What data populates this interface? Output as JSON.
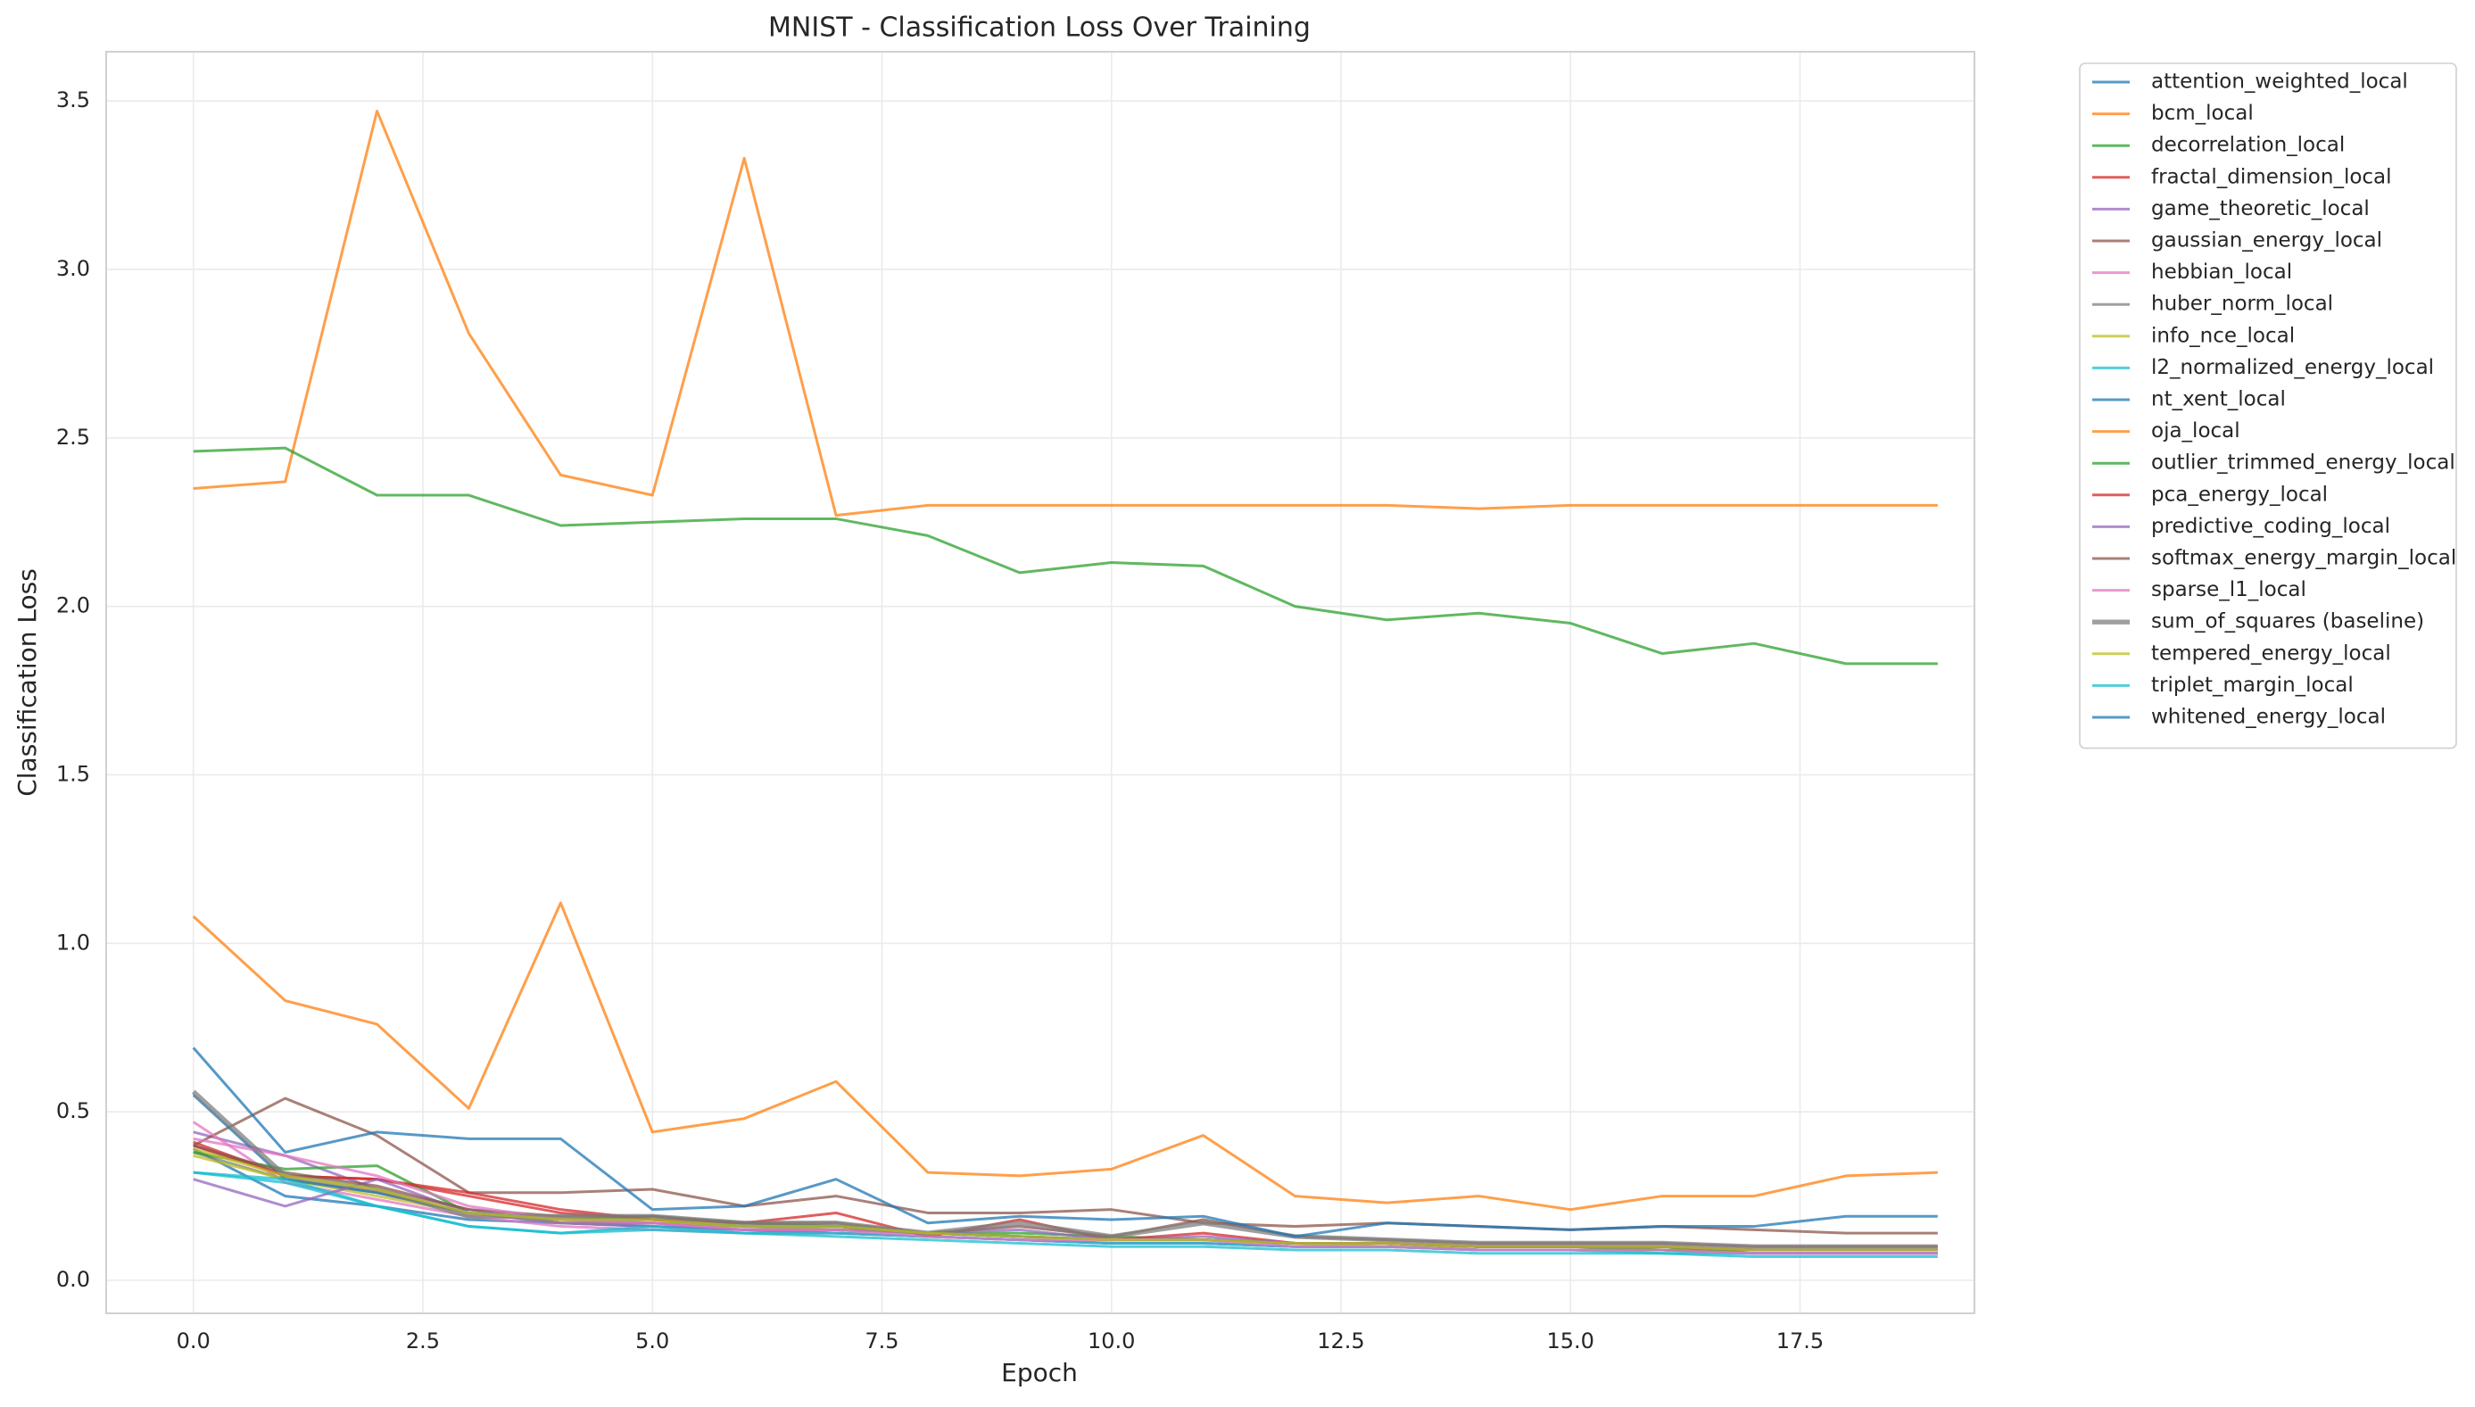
{
  "chart_data": {
    "type": "line",
    "title": "MNIST - Classification Loss Over Training",
    "xlabel": "Epoch",
    "ylabel": "Classification Loss",
    "x": [
      0,
      1,
      2,
      3,
      4,
      5,
      6,
      7,
      8,
      9,
      10,
      11,
      12,
      13,
      14,
      15,
      16,
      17,
      18,
      19
    ],
    "xlim": [
      -0.95,
      19.4
    ],
    "ylim": [
      -0.098,
      3.646
    ],
    "xticks": [
      {
        "value": 0,
        "label": "0.0"
      },
      {
        "value": 2.5,
        "label": "2.5"
      },
      {
        "value": 5,
        "label": "5.0"
      },
      {
        "value": 7.5,
        "label": "7.5"
      },
      {
        "value": 10,
        "label": "10.0"
      },
      {
        "value": 12.5,
        "label": "12.5"
      },
      {
        "value": 15,
        "label": "15.0"
      },
      {
        "value": 17.5,
        "label": "17.5"
      }
    ],
    "yticks": [
      {
        "value": 0,
        "label": "0.0"
      },
      {
        "value": 0.5,
        "label": "0.5"
      },
      {
        "value": 1,
        "label": "1.0"
      },
      {
        "value": 1.5,
        "label": "1.5"
      },
      {
        "value": 2,
        "label": "2.0"
      },
      {
        "value": 2.5,
        "label": "2.5"
      },
      {
        "value": 3,
        "label": "3.0"
      },
      {
        "value": 3.5,
        "label": "3.5"
      }
    ],
    "grid": true,
    "legend_loc": "outside upper right",
    "series": [
      {
        "name": "attention_weighted_local",
        "color": "#1f77b4",
        "values": [
          0.39,
          0.25,
          0.22,
          0.18,
          0.17,
          0.16,
          0.15,
          0.14,
          0.13,
          0.12,
          0.11,
          0.11,
          0.1,
          0.1,
          0.09,
          0.09,
          0.09,
          0.08,
          0.08,
          0.08
        ]
      },
      {
        "name": "bcm_local",
        "color": "#ff7f0e",
        "values": [
          2.35,
          2.37,
          3.47,
          2.81,
          2.39,
          2.33,
          3.33,
          2.27,
          2.3,
          2.3,
          2.3,
          2.3,
          2.3,
          2.3,
          2.29,
          2.3,
          2.3,
          2.3,
          2.3,
          2.3
        ]
      },
      {
        "name": "decorrelation_local",
        "color": "#2ca02c",
        "values": [
          2.46,
          2.47,
          2.33,
          2.33,
          2.24,
          2.25,
          2.26,
          2.26,
          2.21,
          2.1,
          2.13,
          2.12,
          2.0,
          1.96,
          1.98,
          1.95,
          1.86,
          1.89,
          1.83,
          1.83
        ]
      },
      {
        "name": "fractal_dimension_local",
        "color": "#d62728",
        "values": [
          0.41,
          0.31,
          0.3,
          0.25,
          0.2,
          0.18,
          0.17,
          0.16,
          0.14,
          0.13,
          0.12,
          0.12,
          0.11,
          0.11,
          0.1,
          0.1,
          0.1,
          0.09,
          0.09,
          0.09
        ]
      },
      {
        "name": "game_theoretic_local",
        "color": "#9467bd",
        "values": [
          0.44,
          0.37,
          0.27,
          0.21,
          0.17,
          0.16,
          0.15,
          0.14,
          0.13,
          0.12,
          0.11,
          0.11,
          0.1,
          0.1,
          0.09,
          0.09,
          0.09,
          0.08,
          0.08,
          0.08
        ]
      },
      {
        "name": "gaussian_energy_local",
        "color": "#8c564b",
        "values": [
          0.4,
          0.54,
          0.43,
          0.26,
          0.26,
          0.27,
          0.22,
          0.25,
          0.2,
          0.2,
          0.21,
          0.17,
          0.16,
          0.17,
          0.16,
          0.15,
          0.16,
          0.15,
          0.14,
          0.14
        ]
      },
      {
        "name": "hebbian_local",
        "color": "#e377c2",
        "values": [
          0.47,
          0.29,
          0.24,
          0.19,
          0.16,
          0.15,
          0.14,
          0.14,
          0.13,
          0.12,
          0.11,
          0.11,
          0.1,
          0.1,
          0.09,
          0.09,
          0.09,
          0.08,
          0.08,
          0.08
        ]
      },
      {
        "name": "huber_norm_local",
        "color": "#7f7f7f",
        "values": [
          0.38,
          0.3,
          0.26,
          0.2,
          0.18,
          0.17,
          0.16,
          0.15,
          0.14,
          0.13,
          0.12,
          0.12,
          0.11,
          0.11,
          0.1,
          0.1,
          0.1,
          0.09,
          0.09,
          0.09
        ]
      },
      {
        "name": "info_nce_local",
        "color": "#bcbd22",
        "values": [
          0.37,
          0.3,
          0.25,
          0.2,
          0.17,
          0.17,
          0.16,
          0.15,
          0.14,
          0.13,
          0.12,
          0.12,
          0.11,
          0.1,
          0.1,
          0.1,
          0.09,
          0.09,
          0.09,
          0.09
        ]
      },
      {
        "name": "l2_normalized_energy_local",
        "color": "#17becf",
        "values": [
          0.32,
          0.29,
          0.22,
          0.16,
          0.14,
          0.15,
          0.14,
          0.14,
          0.13,
          0.12,
          0.11,
          0.11,
          0.1,
          0.1,
          0.09,
          0.09,
          0.08,
          0.08,
          0.08,
          0.08
        ]
      },
      {
        "name": "nt_xent_local",
        "color": "#1f77b4",
        "values": [
          0.55,
          0.3,
          0.26,
          0.2,
          0.18,
          0.18,
          0.16,
          0.16,
          0.14,
          0.13,
          0.12,
          0.12,
          0.11,
          0.11,
          0.1,
          0.1,
          0.1,
          0.09,
          0.09,
          0.09
        ]
      },
      {
        "name": "oja_local",
        "color": "#ff7f0e",
        "values": [
          1.08,
          0.83,
          0.76,
          0.51,
          1.12,
          0.44,
          0.48,
          0.59,
          0.32,
          0.31,
          0.33,
          0.43,
          0.25,
          0.23,
          0.25,
          0.21,
          0.25,
          0.25,
          0.31,
          0.32
        ]
      },
      {
        "name": "outlier_trimmed_energy_local",
        "color": "#2ca02c",
        "values": [
          0.38,
          0.33,
          0.34,
          0.2,
          0.18,
          0.19,
          0.17,
          0.16,
          0.14,
          0.14,
          0.13,
          0.12,
          0.11,
          0.11,
          0.1,
          0.1,
          0.09,
          0.09,
          0.09,
          0.09
        ]
      },
      {
        "name": "pca_energy_local",
        "color": "#d62728",
        "values": [
          0.4,
          0.31,
          0.3,
          0.26,
          0.21,
          0.18,
          0.17,
          0.2,
          0.13,
          0.18,
          0.12,
          0.14,
          0.11,
          0.11,
          0.1,
          0.1,
          0.1,
          0.09,
          0.09,
          0.09
        ]
      },
      {
        "name": "predictive_coding_local",
        "color": "#9467bd",
        "values": [
          0.3,
          0.22,
          0.3,
          0.2,
          0.17,
          0.17,
          0.15,
          0.15,
          0.14,
          0.15,
          0.12,
          0.13,
          0.11,
          0.11,
          0.1,
          0.1,
          0.1,
          0.09,
          0.09,
          0.09
        ]
      },
      {
        "name": "softmax_energy_margin_local",
        "color": "#8c564b",
        "values": [
          0.4,
          0.32,
          0.28,
          0.21,
          0.19,
          0.19,
          0.17,
          0.17,
          0.14,
          0.16,
          0.13,
          0.18,
          0.13,
          0.12,
          0.11,
          0.11,
          0.11,
          0.1,
          0.1,
          0.1
        ]
      },
      {
        "name": "sparse_l1_local",
        "color": "#e377c2",
        "values": [
          0.42,
          0.37,
          0.31,
          0.22,
          0.18,
          0.17,
          0.15,
          0.15,
          0.13,
          0.12,
          0.12,
          0.12,
          0.1,
          0.1,
          0.09,
          0.09,
          0.09,
          0.08,
          0.08,
          0.08
        ]
      },
      {
        "name": "sum_of_squares (baseline)",
        "color": "#7f7f7f",
        "linewidth": 3,
        "values": [
          0.56,
          0.31,
          0.27,
          0.19,
          0.19,
          0.19,
          0.17,
          0.17,
          0.14,
          0.17,
          0.13,
          0.17,
          0.13,
          0.12,
          0.11,
          0.11,
          0.11,
          0.1,
          0.1,
          0.1
        ]
      },
      {
        "name": "tempered_energy_local",
        "color": "#bcbd22",
        "values": [
          0.39,
          0.31,
          0.27,
          0.2,
          0.18,
          0.18,
          0.16,
          0.16,
          0.14,
          0.13,
          0.12,
          0.12,
          0.11,
          0.11,
          0.1,
          0.1,
          0.1,
          0.09,
          0.09,
          0.09
        ]
      },
      {
        "name": "triplet_margin_local",
        "color": "#17becf",
        "values": [
          0.32,
          0.3,
          0.22,
          0.16,
          0.14,
          0.16,
          0.14,
          0.13,
          0.12,
          0.11,
          0.1,
          0.1,
          0.09,
          0.09,
          0.08,
          0.08,
          0.08,
          0.07,
          0.07,
          0.07
        ]
      },
      {
        "name": "whitened_energy_local",
        "color": "#1f77b4",
        "values": [
          0.69,
          0.38,
          0.44,
          0.42,
          0.42,
          0.21,
          0.22,
          0.3,
          0.17,
          0.19,
          0.18,
          0.19,
          0.13,
          0.17,
          0.16,
          0.15,
          0.16,
          0.16,
          0.19,
          0.19
        ]
      }
    ]
  }
}
